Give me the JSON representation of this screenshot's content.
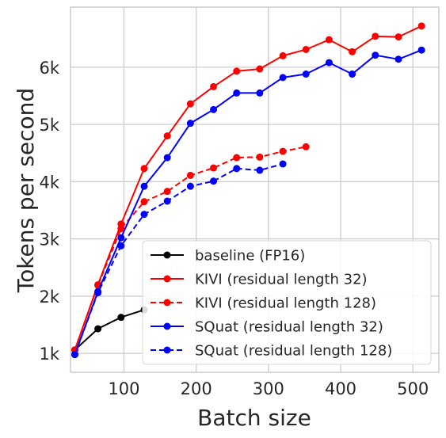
{
  "chart_data": {
    "type": "line",
    "title": "",
    "xlabel": "Batch size",
    "ylabel": "Tokens per second",
    "xlim": [
      26,
      536
    ],
    "ylim": [
      670,
      7050
    ],
    "xticks": [
      100,
      200,
      300,
      400,
      500
    ],
    "xtick_labels": [
      "100",
      "200",
      "300",
      "400",
      "500"
    ],
    "yticks": [
      1000,
      2000,
      3000,
      4000,
      5000,
      6000
    ],
    "ytick_labels": [
      "1k",
      "2k",
      "3k",
      "4k",
      "5k",
      "6k"
    ],
    "grid": true,
    "legend_position": "lower-right",
    "series": [
      {
        "name": "baseline (FP16)",
        "color": "#000000",
        "dash": "solid",
        "x": [
          32,
          64,
          96,
          128
        ],
        "y": [
          1060,
          1430,
          1630,
          1760
        ]
      },
      {
        "name": "KIVI (residual length 32)",
        "color": "#ff0000",
        "dash": "solid",
        "x": [
          32,
          64,
          96,
          128,
          160,
          192,
          224,
          256,
          288,
          320,
          352,
          384,
          416,
          448,
          480,
          512
        ],
        "y": [
          1060,
          2200,
          3260,
          4230,
          4800,
          5360,
          5660,
          5930,
          5970,
          6200,
          6310,
          6480,
          6270,
          6540,
          6530,
          6720
        ]
      },
      {
        "name": "KIVI (residual length 128)",
        "color": "#ff0000",
        "dash": "dashed",
        "x": [
          32,
          64,
          96,
          128,
          160,
          192,
          224,
          256,
          288,
          320,
          352
        ],
        "y": [
          1060,
          2190,
          3180,
          3650,
          3830,
          4110,
          4240,
          4420,
          4430,
          4530,
          4610
        ]
      },
      {
        "name": "SQuat (residual length 32)",
        "color": "#0000ff",
        "dash": "solid",
        "x": [
          32,
          64,
          96,
          128,
          160,
          192,
          224,
          256,
          288,
          320,
          352,
          384,
          416,
          448,
          480,
          512
        ],
        "y": [
          980,
          2080,
          3020,
          3920,
          4420,
          5020,
          5260,
          5550,
          5550,
          5820,
          5880,
          6080,
          5880,
          6210,
          6140,
          6300
        ]
      },
      {
        "name": "SQuat (residual length 128)",
        "color": "#0000ff",
        "dash": "dashed",
        "x": [
          32,
          64,
          96,
          128,
          160,
          192,
          224,
          256,
          288,
          320
        ],
        "y": [
          980,
          2060,
          2880,
          3430,
          3660,
          3920,
          4010,
          4230,
          4200,
          4310
        ]
      }
    ]
  }
}
